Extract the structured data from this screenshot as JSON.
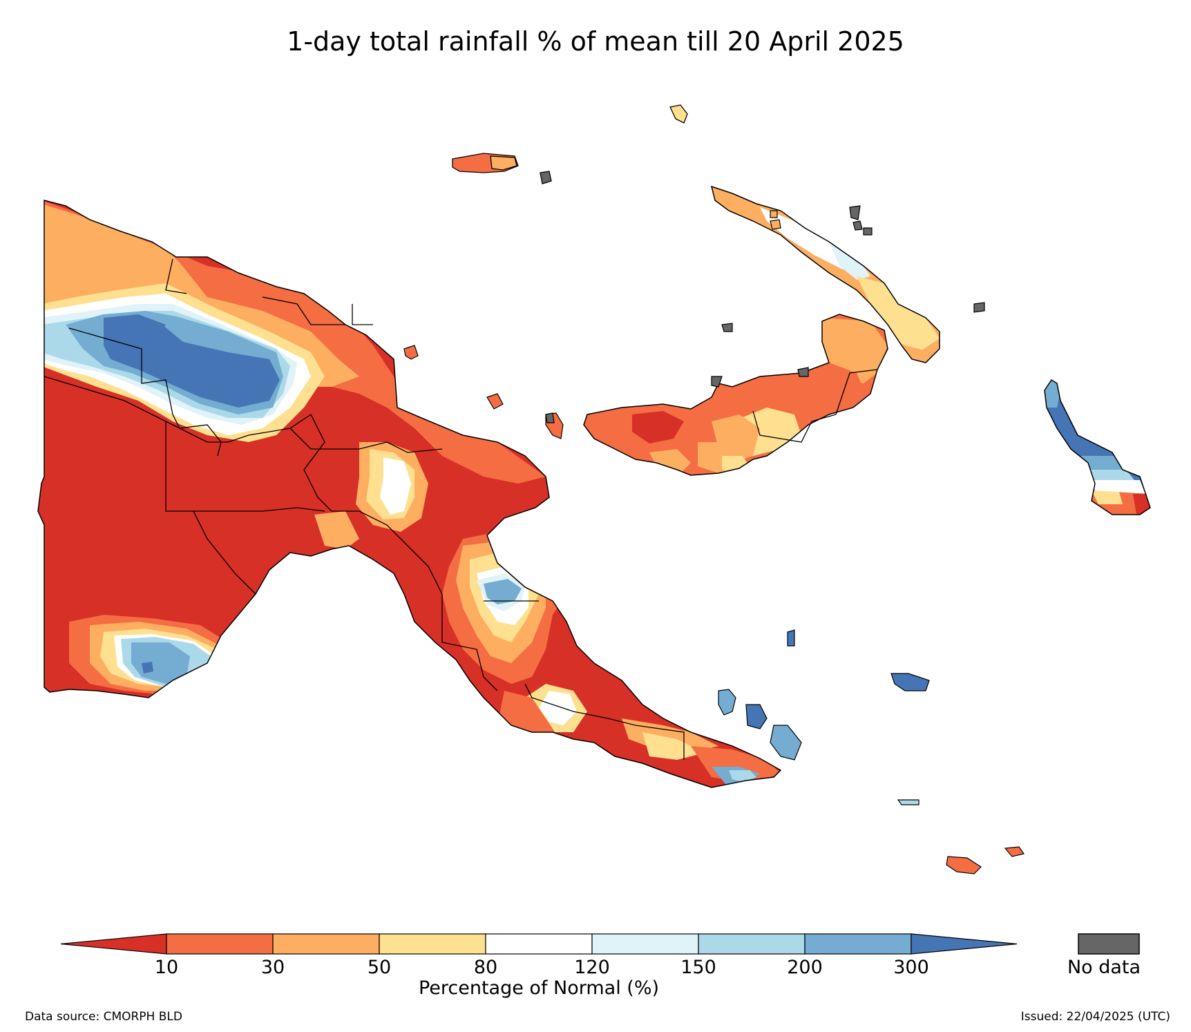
{
  "title": "1-day total rainfall % of mean till 20 April 2025",
  "map": {
    "region": "Papua New Guinea",
    "colors": {
      "lt10": "#d73027",
      "10_30": "#f46d43",
      "30_50": "#fdae61",
      "50_80": "#fee090",
      "80_120": "#ffffff",
      "120_150": "#e0f3f8",
      "150_200": "#abd9e9",
      "200_300": "#74add1",
      "gt300": "#4575b4",
      "nodata": "#666666"
    }
  },
  "colorbar": {
    "label": "Percentage of Normal (%)",
    "ticks": [
      "10",
      "30",
      "50",
      "80",
      "120",
      "150",
      "200",
      "300"
    ],
    "colors": [
      "#d73027",
      "#f46d43",
      "#fdae61",
      "#fee090",
      "#ffffff",
      "#e0f3f8",
      "#abd9e9",
      "#74add1",
      "#4575b4"
    ],
    "no_data_label": "No data",
    "no_data_color": "#666666"
  },
  "footer": {
    "source": "Data source: CMORPH BLD",
    "issued": "Issued: 22/04/2025 (UTC)"
  }
}
